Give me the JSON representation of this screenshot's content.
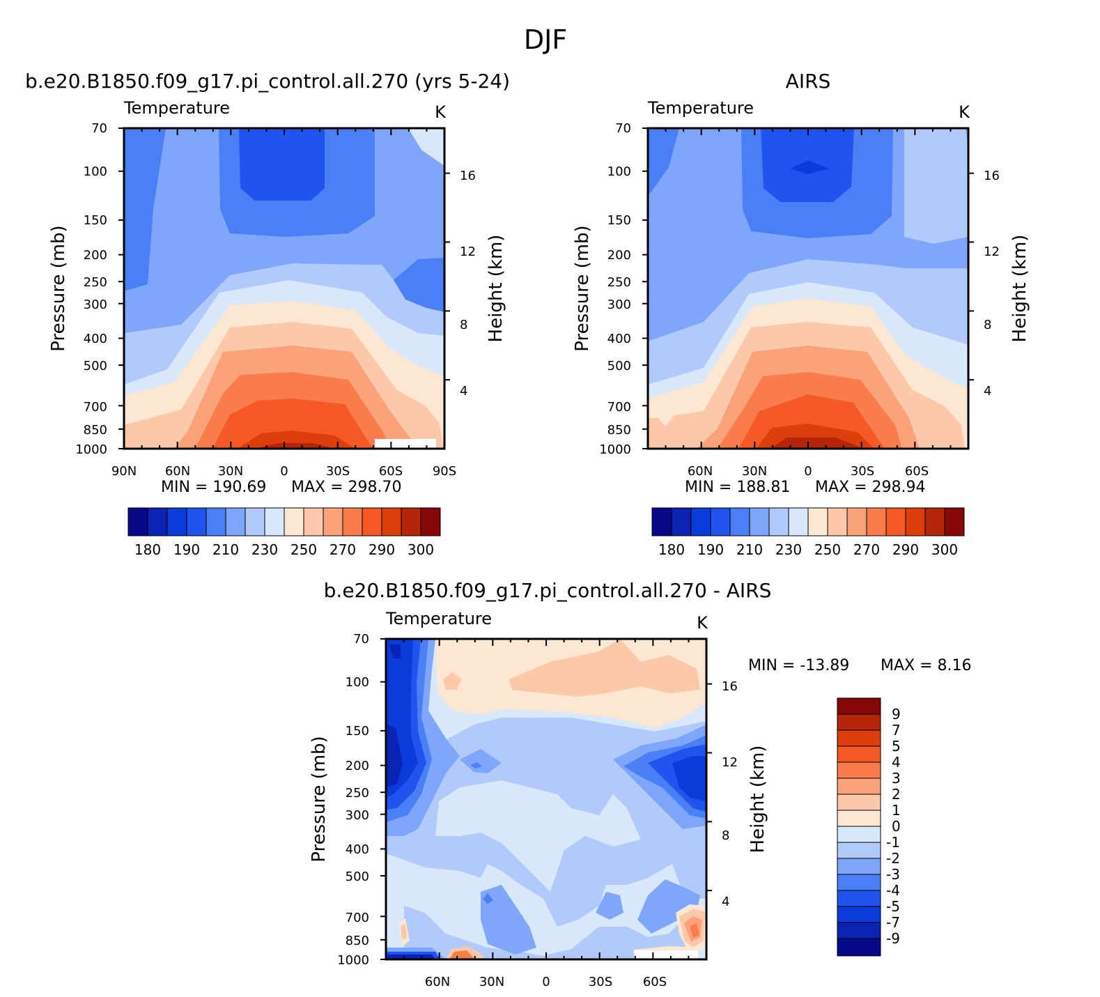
{
  "figure": {
    "title": "DJF"
  },
  "color_palettes": {
    "absolute": [
      "#08088a",
      "#0a23b3",
      "#0b3bd9",
      "#1f55ee",
      "#4a7ff5",
      "#7ea6fa",
      "#b1c9fb",
      "#d8e8fb",
      "#fde6d2",
      "#fcc8aa",
      "#fba27a",
      "#f97d4c",
      "#f55a24",
      "#de3d0d",
      "#b52508",
      "#850707"
    ],
    "difference": [
      "#08088a",
      "#0a23b3",
      "#0b3bd9",
      "#1f55ee",
      "#4a7ff5",
      "#7ea6fa",
      "#b1c9fb",
      "#d8e8fb",
      "#fde6d2",
      "#fcc8aa",
      "#fba27a",
      "#f97d4c",
      "#f55a24",
      "#de3d0d",
      "#b52508",
      "#850707"
    ]
  },
  "chart_data": [
    {
      "id": "model",
      "type": "contour",
      "title": "b.e20.B1850.f09_g17.pi_control.all.270 (yrs 5-24)",
      "field_label": "Temperature",
      "units": "K",
      "ylabel": "Pressure (mb)",
      "y2label": "Height (km)",
      "y_ticks": [
        "70",
        "100",
        "150",
        "200",
        "250",
        "300",
        "400",
        "500",
        "700",
        "850",
        "1000"
      ],
      "y_tick_values": [
        70,
        100,
        150,
        200,
        250,
        300,
        400,
        500,
        700,
        850,
        1000
      ],
      "y2_ticks": [
        "16",
        "12",
        "8",
        "4"
      ],
      "y2_tick_values": [
        16,
        12,
        8,
        4
      ],
      "x_ticks": [
        "90N",
        "60N",
        "30N",
        "0",
        "30S",
        "60S",
        "90S"
      ],
      "x_tick_values": [
        90,
        60,
        30,
        0,
        -30,
        -60,
        -90
      ],
      "xlim": [
        90,
        -90
      ],
      "ylim": [
        1000,
        70
      ],
      "min_label": "MIN = 190.69",
      "max_label": "MAX = 298.70",
      "min": 190.69,
      "max": 298.7,
      "colorbar_labels": [
        "180",
        "190",
        "210",
        "230",
        "250",
        "270",
        "290",
        "300"
      ]
    },
    {
      "id": "obs",
      "type": "contour",
      "title": "AIRS",
      "field_label": "Temperature",
      "units": "K",
      "ylabel": "Pressure (mb)",
      "y2label": "Height (km)",
      "y_ticks": [
        "70",
        "100",
        "150",
        "200",
        "250",
        "300",
        "400",
        "500",
        "700",
        "850",
        "1000"
      ],
      "y_tick_values": [
        70,
        100,
        150,
        200,
        250,
        300,
        400,
        500,
        700,
        850,
        1000
      ],
      "y2_ticks": [
        "16",
        "12",
        "8",
        "4"
      ],
      "y2_tick_values": [
        16,
        12,
        8,
        4
      ],
      "x_ticks": [
        "60N",
        "30N",
        "0",
        "30S",
        "60S"
      ],
      "x_tick_values": [
        60,
        30,
        0,
        -30,
        -60
      ],
      "xlim": [
        90,
        -90
      ],
      "ylim": [
        1000,
        70
      ],
      "min_label": "MIN = 188.81",
      "max_label": "MAX = 298.94",
      "min": 188.81,
      "max": 298.94,
      "colorbar_labels": [
        "180",
        "190",
        "210",
        "230",
        "250",
        "270",
        "290",
        "300"
      ]
    },
    {
      "id": "diff",
      "type": "contour",
      "title": "b.e20.B1850.f09_g17.pi_control.all.270 - AIRS",
      "field_label": "Temperature",
      "units": "K",
      "ylabel": "Pressure (mb)",
      "y2label": "Height (km)",
      "y_ticks": [
        "70",
        "100",
        "150",
        "200",
        "250",
        "300",
        "400",
        "500",
        "700",
        "850",
        "1000"
      ],
      "y_tick_values": [
        70,
        100,
        150,
        200,
        250,
        300,
        400,
        500,
        700,
        850,
        1000
      ],
      "y2_ticks": [
        "16",
        "12",
        "8",
        "4"
      ],
      "y2_tick_values": [
        16,
        12,
        8,
        4
      ],
      "x_ticks": [
        "60N",
        "30N",
        "0",
        "30S",
        "60S"
      ],
      "x_tick_values": [
        60,
        30,
        0,
        -30,
        -60
      ],
      "xlim": [
        90,
        -90
      ],
      "ylim": [
        1000,
        70
      ],
      "min_label": "MIN = -13.89",
      "max_label": "MAX = 8.16",
      "min": -13.89,
      "max": 8.16,
      "colorbar_labels": [
        "9",
        "7",
        "5",
        "4",
        "3",
        "2",
        "1",
        "0",
        "-1",
        "-2",
        "-3",
        "-4",
        "-5",
        "-7",
        "-9"
      ]
    }
  ]
}
